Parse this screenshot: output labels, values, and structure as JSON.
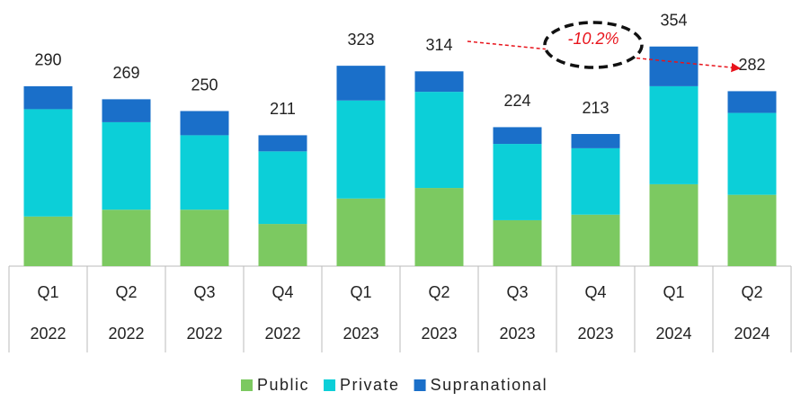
{
  "chart_data": {
    "type": "stacked-bar",
    "categories": [
      [
        "Q1",
        "2022"
      ],
      [
        "Q2",
        "2022"
      ],
      [
        "Q3",
        "2022"
      ],
      [
        "Q4",
        "2022"
      ],
      [
        "Q1",
        "2023"
      ],
      [
        "Q2",
        "2023"
      ],
      [
        "Q3",
        "2023"
      ],
      [
        "Q4",
        "2023"
      ],
      [
        "Q1",
        "2024"
      ],
      [
        "Q2",
        "2024"
      ]
    ],
    "series": [
      {
        "name": "Public",
        "color": "#7cc961",
        "values": [
          80,
          91,
          91,
          68,
          109,
          126,
          74,
          83,
          132,
          115
        ]
      },
      {
        "name": "Private",
        "color": "#0ccfd8",
        "values": [
          173,
          141,
          120,
          117,
          158,
          155,
          123,
          107,
          158,
          132
        ]
      },
      {
        "name": "Supranational",
        "color": "#1a6fc9",
        "values": [
          37,
          37,
          39,
          26,
          56,
          33,
          27,
          23,
          64,
          35
        ]
      }
    ],
    "totals": [
      290,
      269,
      250,
      211,
      323,
      314,
      224,
      213,
      354,
      282
    ],
    "annotation": "-10.2%",
    "annotation_color": "#e8141c"
  }
}
